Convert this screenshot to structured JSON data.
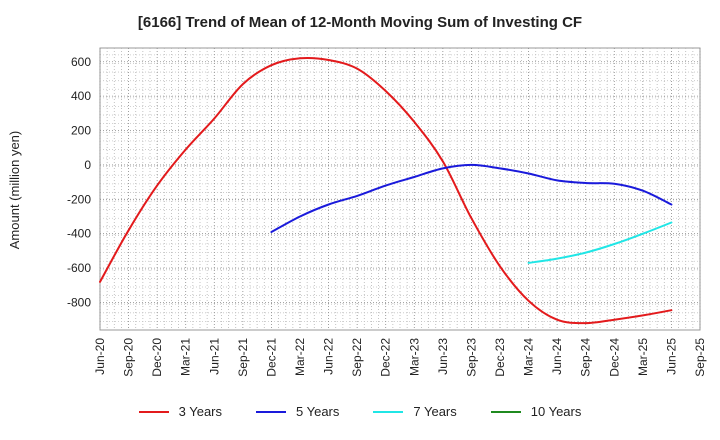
{
  "chart_data": {
    "type": "line",
    "title": "[6166]  Trend of Mean of 12-Month Moving Sum of Investing CF",
    "ylabel": "Amount (million yen)",
    "xlabel": "",
    "ylim": [
      -960,
      680
    ],
    "yticks": [
      600,
      400,
      200,
      0,
      -200,
      -400,
      -600,
      -800
    ],
    "x_categories": [
      "Jun-20",
      "Sep-20",
      "Dec-20",
      "Mar-21",
      "Jun-21",
      "Sep-21",
      "Dec-21",
      "Mar-22",
      "Jun-22",
      "Sep-22",
      "Dec-22",
      "Mar-23",
      "Jun-23",
      "Sep-23",
      "Dec-23",
      "Mar-24",
      "Jun-24",
      "Sep-24",
      "Dec-24",
      "Mar-25",
      "Jun-25",
      "Sep-25"
    ],
    "grid": true,
    "legend_position": "bottom",
    "series": [
      {
        "name": "3 Years",
        "color": "#e31a1c",
        "points": [
          [
            0,
            -680
          ],
          [
            1,
            -380
          ],
          [
            2,
            -120
          ],
          [
            3,
            90
          ],
          [
            4,
            270
          ],
          [
            5,
            470
          ],
          [
            6,
            580
          ],
          [
            7,
            620
          ],
          [
            8,
            610
          ],
          [
            9,
            560
          ],
          [
            10,
            430
          ],
          [
            11,
            250
          ],
          [
            12,
            20
          ],
          [
            13,
            -310
          ],
          [
            14,
            -590
          ],
          [
            15,
            -790
          ],
          [
            16,
            -900
          ],
          [
            17,
            -920
          ],
          [
            18,
            -900
          ],
          [
            19,
            -875
          ],
          [
            20,
            -845
          ]
        ]
      },
      {
        "name": "5 Years",
        "color": "#1a1adb",
        "points": [
          [
            6,
            -390
          ],
          [
            7,
            -300
          ],
          [
            8,
            -230
          ],
          [
            9,
            -180
          ],
          [
            10,
            -120
          ],
          [
            11,
            -70
          ],
          [
            12,
            -20
          ],
          [
            13,
            0
          ],
          [
            14,
            -20
          ],
          [
            15,
            -50
          ],
          [
            16,
            -90
          ],
          [
            17,
            -105
          ],
          [
            18,
            -110
          ],
          [
            19,
            -150
          ],
          [
            20,
            -230
          ]
        ]
      },
      {
        "name": "7 Years",
        "color": "#20e6e6",
        "points": [
          [
            15,
            -570
          ],
          [
            16,
            -545
          ],
          [
            17,
            -510
          ],
          [
            18,
            -460
          ],
          [
            19,
            -400
          ],
          [
            20,
            -335
          ]
        ]
      },
      {
        "name": "10 Years",
        "color": "#1f8a1f",
        "points": []
      }
    ]
  }
}
